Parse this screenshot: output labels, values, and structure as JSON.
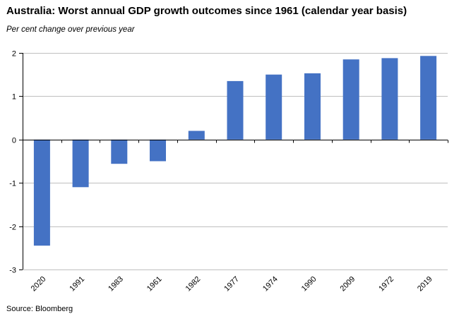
{
  "title": "Australia: Worst annual GDP growth outcomes since 1961 (calendar year basis)",
  "subtitle": "Per cent change over previous year",
  "source": "Source: Bloomberg",
  "colors": {
    "bar": "#4472C4",
    "grid": "#BFBFBF",
    "axis": "#000000"
  },
  "chart_data": {
    "type": "bar",
    "title": "Australia: Worst annual GDP growth outcomes since 1961 (calendar year basis)",
    "ylabel": "Per cent change over previous year",
    "xlabel": "",
    "categories": [
      "2020",
      "1991",
      "1983",
      "1961",
      "1982",
      "1977",
      "1974",
      "1990",
      "2009",
      "1972",
      "2019"
    ],
    "values": [
      -2.45,
      -1.1,
      -0.56,
      -0.5,
      0.2,
      1.35,
      1.5,
      1.53,
      1.85,
      1.88,
      1.93
    ],
    "ylim": [
      -3,
      2
    ],
    "yticks": [
      -3,
      -2,
      -1,
      0,
      1,
      2
    ],
    "ytick_labels": [
      "-3",
      "-2",
      "-1",
      "0",
      "1",
      "2"
    ],
    "grid": true,
    "legend": "none"
  }
}
